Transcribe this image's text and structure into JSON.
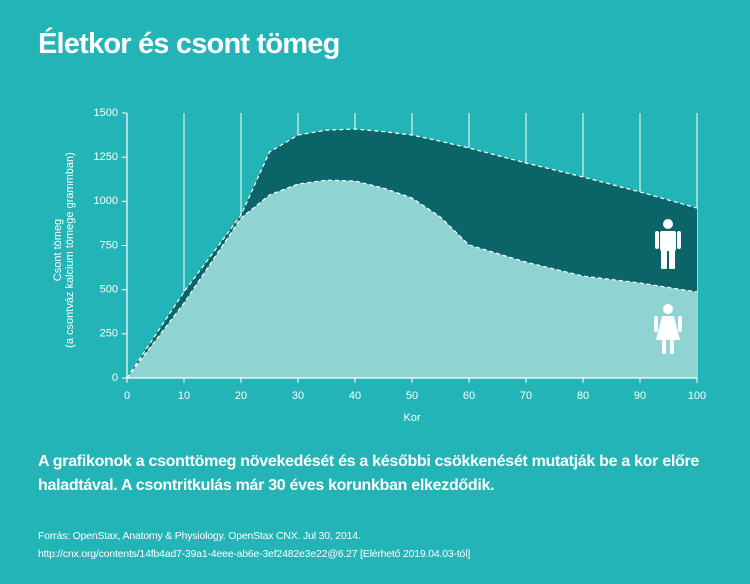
{
  "chart_data": {
    "type": "area",
    "title": "Életkor és csont tömeg",
    "y_label": [
      "Csont tömeg",
      "(a csontváz kalcium tömege grammban)"
    ],
    "x_label": "Kor",
    "x": [
      0,
      10,
      20,
      25,
      30,
      35,
      40,
      45,
      50,
      55,
      60,
      70,
      80,
      90,
      100
    ],
    "series": [
      {
        "color": "#0b6468",
        "values": [
          0,
          487,
          922,
          1279,
          1375,
          1403,
          1409,
          1395,
          1375,
          1340,
          1302,
          1217,
          1138,
          1053,
          962
        ]
      },
      {
        "color": "#8fd4d2",
        "values": [
          0,
          424,
          905,
          1036,
          1098,
          1120,
          1115,
          1075,
          1019,
          911,
          753,
          656,
          577,
          538,
          487
        ]
      }
    ],
    "xlim": [
      0,
      100
    ],
    "xticks": [
      0,
      10,
      20,
      30,
      40,
      50,
      60,
      70,
      80,
      90,
      100
    ],
    "ylim": [
      0,
      1500
    ],
    "yticks": [
      0,
      250,
      500,
      750,
      1000,
      1250,
      1500
    ],
    "grid": true,
    "caption": "A grafikonok a csonttömeg növekedését és a későbbi csökkenését mutatják be a kor előre haladtával. A csontritkulás már 30 éves korunkban elkezdődik.",
    "source": [
      "Forrás: OpenStax, Anatomy & Physiology. OpenStax CNX. Jul 30, 2014.",
      "http://cnx.org/contents/14fb4ad7-39a1-4eee-ab6e-3ef2482e3e22@6.27 [Elérhető 2019.04.03-tól]"
    ]
  }
}
